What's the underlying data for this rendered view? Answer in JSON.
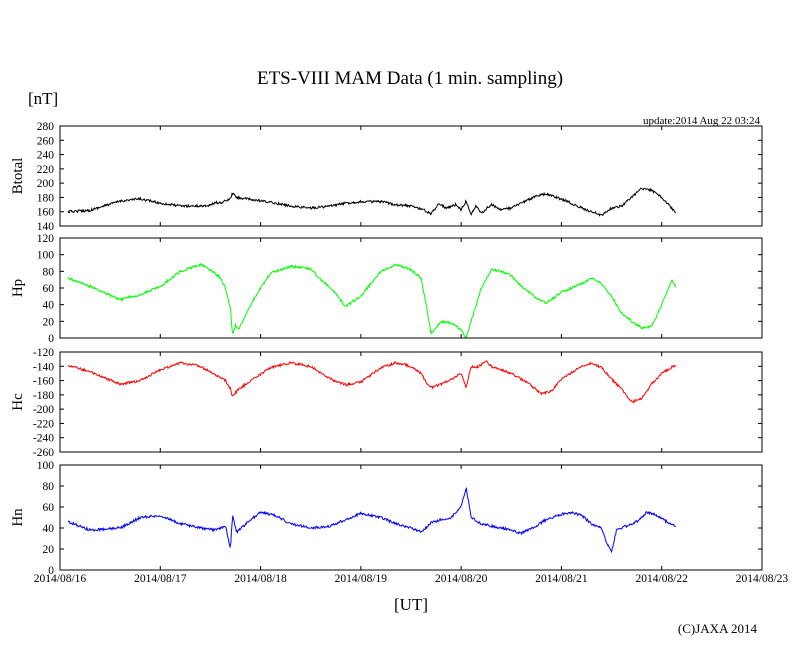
{
  "chart_data": {
    "type": "line",
    "title": "ETS-VIII MAM Data (1 min. sampling)",
    "unit_label": "[nT]",
    "update_text": "update:2014 Aug 22 03:24",
    "xlabel": "[UT]",
    "copyright": "(C)JAXA 2014",
    "x_ticks": [
      "2014/08/16",
      "2014/08/17",
      "2014/08/18",
      "2014/08/19",
      "2014/08/20",
      "2014/08/21",
      "2014/08/22",
      "2014/08/23"
    ],
    "x_range_days": [
      0,
      7
    ],
    "data_end_day": 6.14,
    "panels": [
      {
        "name": "Btotal",
        "ylabel": "Btotal",
        "color": "#000000",
        "ylim": [
          140,
          280
        ],
        "yticks": [
          280,
          260,
          240,
          220,
          200,
          180,
          160,
          140
        ],
        "series": [
          [
            0.08,
            160
          ],
          [
            0.3,
            162
          ],
          [
            0.6,
            175
          ],
          [
            0.8,
            178
          ],
          [
            1.0,
            172
          ],
          [
            1.2,
            168
          ],
          [
            1.4,
            168
          ],
          [
            1.5,
            169
          ],
          [
            1.55,
            173
          ],
          [
            1.6,
            172
          ],
          [
            1.7,
            178
          ],
          [
            1.72,
            186
          ],
          [
            1.76,
            180
          ],
          [
            2.0,
            175
          ],
          [
            2.15,
            172
          ],
          [
            2.3,
            168
          ],
          [
            2.5,
            165
          ],
          [
            2.7,
            168
          ],
          [
            2.85,
            172
          ],
          [
            3.0,
            174
          ],
          [
            3.2,
            174
          ],
          [
            3.35,
            170
          ],
          [
            3.5,
            168
          ],
          [
            3.6,
            164
          ],
          [
            3.66,
            160
          ],
          [
            3.7,
            157
          ],
          [
            3.78,
            172
          ],
          [
            3.85,
            165
          ],
          [
            3.95,
            170
          ],
          [
            4.0,
            163
          ],
          [
            4.05,
            175
          ],
          [
            4.1,
            157
          ],
          [
            4.15,
            168
          ],
          [
            4.2,
            158
          ],
          [
            4.3,
            170
          ],
          [
            4.4,
            163
          ],
          [
            4.5,
            165
          ],
          [
            4.6,
            172
          ],
          [
            4.75,
            182
          ],
          [
            4.85,
            185
          ],
          [
            4.95,
            180
          ],
          [
            5.05,
            175
          ],
          [
            5.15,
            168
          ],
          [
            5.3,
            160
          ],
          [
            5.4,
            155
          ],
          [
            5.5,
            165
          ],
          [
            5.6,
            168
          ],
          [
            5.7,
            180
          ],
          [
            5.8,
            193
          ],
          [
            5.9,
            190
          ],
          [
            6.0,
            180
          ],
          [
            6.1,
            165
          ],
          [
            6.14,
            158
          ]
        ]
      },
      {
        "name": "Hp",
        "ylabel": "Hp",
        "color": "#00ff00",
        "ylim": [
          0,
          120
        ],
        "yticks": [
          120,
          100,
          80,
          60,
          40,
          20,
          0
        ],
        "series": [
          [
            0.08,
            72
          ],
          [
            0.3,
            62
          ],
          [
            0.6,
            46
          ],
          [
            0.8,
            52
          ],
          [
            1.0,
            62
          ],
          [
            1.2,
            80
          ],
          [
            1.4,
            88
          ],
          [
            1.5,
            82
          ],
          [
            1.6,
            72
          ],
          [
            1.65,
            60
          ],
          [
            1.7,
            35
          ],
          [
            1.72,
            5
          ],
          [
            1.75,
            15
          ],
          [
            1.78,
            10
          ],
          [
            1.9,
            40
          ],
          [
            2.0,
            60
          ],
          [
            2.1,
            78
          ],
          [
            2.3,
            86
          ],
          [
            2.5,
            83
          ],
          [
            2.6,
            70
          ],
          [
            2.7,
            60
          ],
          [
            2.85,
            38
          ],
          [
            3.0,
            50
          ],
          [
            3.2,
            80
          ],
          [
            3.35,
            88
          ],
          [
            3.5,
            82
          ],
          [
            3.6,
            72
          ],
          [
            3.65,
            40
          ],
          [
            3.7,
            5
          ],
          [
            3.8,
            20
          ],
          [
            3.9,
            18
          ],
          [
            4.0,
            10
          ],
          [
            4.05,
            0
          ],
          [
            4.1,
            20
          ],
          [
            4.2,
            60
          ],
          [
            4.3,
            82
          ],
          [
            4.4,
            80
          ],
          [
            4.5,
            75
          ],
          [
            4.6,
            62
          ],
          [
            4.75,
            48
          ],
          [
            4.85,
            42
          ],
          [
            5.0,
            55
          ],
          [
            5.2,
            65
          ],
          [
            5.3,
            72
          ],
          [
            5.4,
            65
          ],
          [
            5.5,
            50
          ],
          [
            5.6,
            30
          ],
          [
            5.7,
            20
          ],
          [
            5.8,
            12
          ],
          [
            5.9,
            14
          ],
          [
            6.0,
            40
          ],
          [
            6.1,
            70
          ],
          [
            6.14,
            62
          ]
        ]
      },
      {
        "name": "Hc",
        "ylabel": "Hc",
        "color": "#ff0000",
        "ylim": [
          -260,
          -120
        ],
        "yticks": [
          -120,
          -140,
          -160,
          -180,
          -200,
          -220,
          -240,
          -260
        ],
        "series": [
          [
            0.08,
            -138
          ],
          [
            0.3,
            -148
          ],
          [
            0.6,
            -165
          ],
          [
            0.8,
            -160
          ],
          [
            1.0,
            -145
          ],
          [
            1.2,
            -135
          ],
          [
            1.4,
            -140
          ],
          [
            1.55,
            -152
          ],
          [
            1.65,
            -160
          ],
          [
            1.7,
            -172
          ],
          [
            1.72,
            -182
          ],
          [
            1.76,
            -175
          ],
          [
            1.9,
            -160
          ],
          [
            2.1,
            -142
          ],
          [
            2.3,
            -135
          ],
          [
            2.5,
            -140
          ],
          [
            2.7,
            -158
          ],
          [
            2.85,
            -166
          ],
          [
            3.0,
            -162
          ],
          [
            3.2,
            -142
          ],
          [
            3.35,
            -135
          ],
          [
            3.5,
            -140
          ],
          [
            3.6,
            -150
          ],
          [
            3.65,
            -162
          ],
          [
            3.7,
            -170
          ],
          [
            3.85,
            -162
          ],
          [
            4.0,
            -150
          ],
          [
            4.05,
            -170
          ],
          [
            4.1,
            -140
          ],
          [
            4.15,
            -142
          ],
          [
            4.25,
            -133
          ],
          [
            4.3,
            -140
          ],
          [
            4.5,
            -150
          ],
          [
            4.65,
            -162
          ],
          [
            4.8,
            -178
          ],
          [
            4.9,
            -175
          ],
          [
            5.0,
            -158
          ],
          [
            5.2,
            -140
          ],
          [
            5.3,
            -135
          ],
          [
            5.4,
            -142
          ],
          [
            5.5,
            -158
          ],
          [
            5.6,
            -172
          ],
          [
            5.7,
            -190
          ],
          [
            5.8,
            -185
          ],
          [
            5.9,
            -165
          ],
          [
            6.0,
            -150
          ],
          [
            6.14,
            -138
          ]
        ]
      },
      {
        "name": "Hn",
        "ylabel": "Hn",
        "color": "#0000ff",
        "ylim": [
          0,
          100
        ],
        "yticks": [
          100,
          80,
          60,
          40,
          20,
          0
        ],
        "series": [
          [
            0.08,
            46
          ],
          [
            0.3,
            38
          ],
          [
            0.6,
            40
          ],
          [
            0.8,
            50
          ],
          [
            1.0,
            52
          ],
          [
            1.2,
            44
          ],
          [
            1.4,
            40
          ],
          [
            1.55,
            38
          ],
          [
            1.65,
            42
          ],
          [
            1.7,
            20
          ],
          [
            1.72,
            52
          ],
          [
            1.76,
            36
          ],
          [
            1.9,
            48
          ],
          [
            2.0,
            55
          ],
          [
            2.15,
            52
          ],
          [
            2.3,
            44
          ],
          [
            2.5,
            40
          ],
          [
            2.7,
            42
          ],
          [
            2.85,
            48
          ],
          [
            3.0,
            54
          ],
          [
            3.2,
            50
          ],
          [
            3.35,
            44
          ],
          [
            3.5,
            40
          ],
          [
            3.6,
            36
          ],
          [
            3.7,
            45
          ],
          [
            3.8,
            48
          ],
          [
            3.9,
            50
          ],
          [
            4.0,
            60
          ],
          [
            4.05,
            78
          ],
          [
            4.1,
            50
          ],
          [
            4.2,
            44
          ],
          [
            4.4,
            40
          ],
          [
            4.5,
            38
          ],
          [
            4.6,
            35
          ],
          [
            4.75,
            42
          ],
          [
            4.85,
            48
          ],
          [
            5.0,
            53
          ],
          [
            5.1,
            55
          ],
          [
            5.2,
            52
          ],
          [
            5.3,
            44
          ],
          [
            5.4,
            40
          ],
          [
            5.45,
            26
          ],
          [
            5.5,
            18
          ],
          [
            5.55,
            38
          ],
          [
            5.65,
            42
          ],
          [
            5.75,
            46
          ],
          [
            5.85,
            55
          ],
          [
            5.95,
            52
          ],
          [
            6.05,
            46
          ],
          [
            6.14,
            42
          ]
        ]
      }
    ]
  }
}
